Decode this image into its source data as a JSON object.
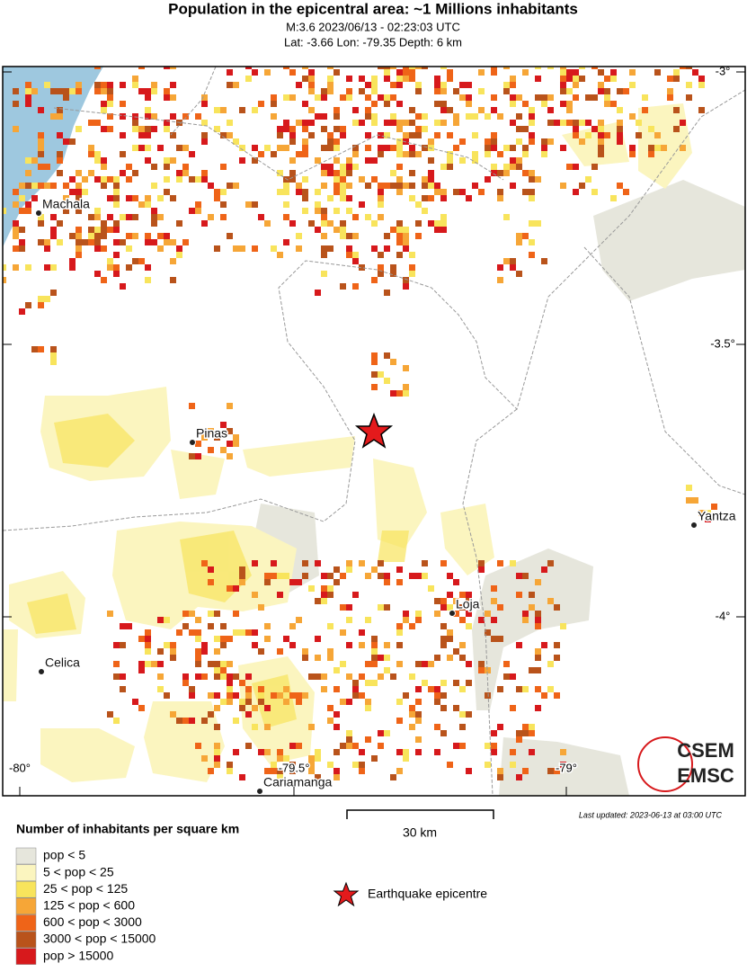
{
  "header": {
    "title": "Population in the epicentral area: ~1 Millions inhabitants",
    "event": "M:3.6 2023/06/13 - 02:23:03 UTC",
    "location": "Lat: -3.66 Lon: -79.35 Depth: 6 km"
  },
  "map": {
    "lat_labels": [
      "-3°",
      "-3.5°",
      "-4°"
    ],
    "lon_labels": [
      "-80°",
      "-79.5°",
      "-79°"
    ],
    "cities": [
      "Machala",
      "Pinas",
      "Celica",
      "Loja",
      "Yantza",
      "Cariamanga"
    ]
  },
  "scale": "30 km",
  "updated": "Last updated: 2023-06-13 at 03:00 UTC",
  "logo": {
    "top": "CSEM",
    "bottom": "EMSC"
  },
  "legend": {
    "title": "Number of inhabitants per square km",
    "items": [
      {
        "label": "pop < 5",
        "color": "#e6e6dc"
      },
      {
        "label": "5 < pop < 25",
        "color": "#fbf5bf"
      },
      {
        "label": "25 < pop < 125",
        "color": "#f8e45c"
      },
      {
        "label": "125 < pop < 600",
        "color": "#f6a637"
      },
      {
        "label": "600 < pop < 3000",
        "color": "#ef6418"
      },
      {
        "label": "3000 < pop < 15000",
        "color": "#b9531b"
      },
      {
        "label": "pop > 15000",
        "color": "#d7191c"
      }
    ],
    "epicentre": "Earthquake epicentre"
  }
}
